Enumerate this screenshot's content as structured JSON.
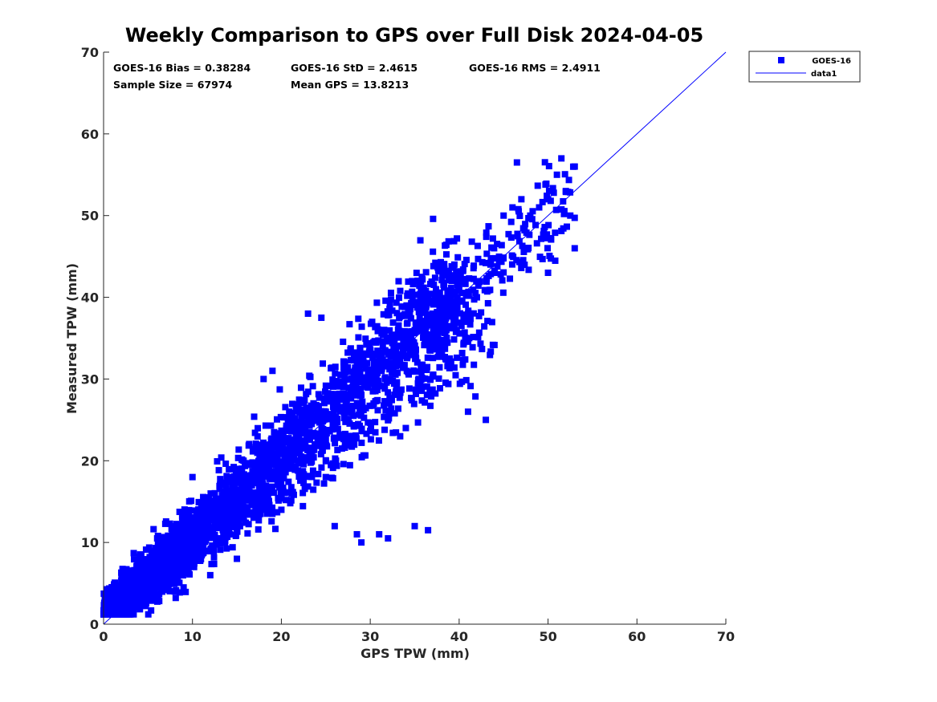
{
  "chart_data": {
    "type": "scatter",
    "title": "Weekly Comparison to GPS over Full Disk 2024-04-05",
    "xlabel": "GPS TPW (mm)",
    "ylabel": "Measured TPW (mm)",
    "xlim": [
      0,
      70
    ],
    "ylim": [
      0,
      70
    ],
    "xticks": [
      "0",
      "10",
      "20",
      "30",
      "40",
      "50",
      "60",
      "70"
    ],
    "yticks": [
      "0",
      "10",
      "20",
      "30",
      "40",
      "50",
      "60",
      "70"
    ],
    "grid": false,
    "legend_position": "outside top-right",
    "stats": [
      "GOES-16 Bias = 0.38284",
      "GOES-16 StD = 2.4615",
      "GOES-16 RMS = 2.4911",
      "Sample Size = 67974",
      "Mean GPS = 13.8213"
    ],
    "series": [
      {
        "name": "GOES-16",
        "marker": "square",
        "color": "#0000ff",
        "sample_points": [
          [
            0.5,
            3.5
          ],
          [
            1,
            2.5
          ],
          [
            1.5,
            4.5
          ],
          [
            2,
            3
          ],
          [
            2.5,
            5
          ],
          [
            3,
            4
          ],
          [
            3.5,
            6
          ],
          [
            4,
            5
          ],
          [
            5,
            6.5
          ],
          [
            6,
            7
          ],
          [
            7,
            8.5
          ],
          [
            8,
            9
          ],
          [
            9,
            10
          ],
          [
            10,
            11
          ],
          [
            11,
            12
          ],
          [
            12,
            13
          ],
          [
            13,
            14
          ],
          [
            14,
            15.5
          ],
          [
            15,
            16
          ],
          [
            16,
            17
          ],
          [
            17,
            18
          ],
          [
            18,
            19.5
          ],
          [
            19,
            20
          ],
          [
            20,
            21
          ],
          [
            21,
            22
          ],
          [
            22,
            23
          ],
          [
            23,
            24.5
          ],
          [
            24,
            25
          ],
          [
            25,
            26
          ],
          [
            26,
            27
          ],
          [
            27,
            28
          ],
          [
            28,
            29
          ],
          [
            29,
            30
          ],
          [
            30,
            31
          ],
          [
            31,
            32
          ],
          [
            32,
            33
          ],
          [
            33,
            34
          ],
          [
            34,
            35
          ],
          [
            35,
            36
          ],
          [
            36,
            37
          ],
          [
            37,
            38
          ],
          [
            38,
            39
          ],
          [
            39,
            40
          ],
          [
            40,
            41
          ],
          [
            41,
            38
          ],
          [
            42,
            40
          ],
          [
            44,
            43
          ],
          [
            45,
            50
          ],
          [
            46,
            51
          ],
          [
            47,
            52
          ],
          [
            48,
            50
          ],
          [
            49,
            51
          ],
          [
            50,
            52
          ],
          [
            51,
            55
          ],
          [
            52,
            53
          ],
          [
            52.5,
            50
          ],
          [
            53,
            56
          ],
          [
            51.5,
            57
          ],
          [
            46.5,
            56.5
          ],
          [
            50,
            43
          ],
          [
            53,
            46
          ],
          [
            31,
            11
          ],
          [
            32,
            10.5
          ],
          [
            28.5,
            11
          ],
          [
            29,
            10
          ],
          [
            36.5,
            11.5
          ],
          [
            35,
            12
          ],
          [
            26,
            12
          ],
          [
            34,
            24
          ],
          [
            41,
            26
          ],
          [
            43,
            25
          ],
          [
            23,
            38
          ],
          [
            24.5,
            37.5
          ],
          [
            19,
            31
          ],
          [
            18,
            30
          ],
          [
            10,
            18
          ],
          [
            8,
            4
          ],
          [
            9,
            4.5
          ],
          [
            12,
            6
          ],
          [
            15,
            8
          ],
          [
            20,
            14
          ],
          [
            25,
            18
          ]
        ]
      },
      {
        "name": "data1",
        "type": "line",
        "color": "#0000ff",
        "x": [
          0,
          70
        ],
        "y": [
          0,
          70
        ]
      }
    ]
  }
}
